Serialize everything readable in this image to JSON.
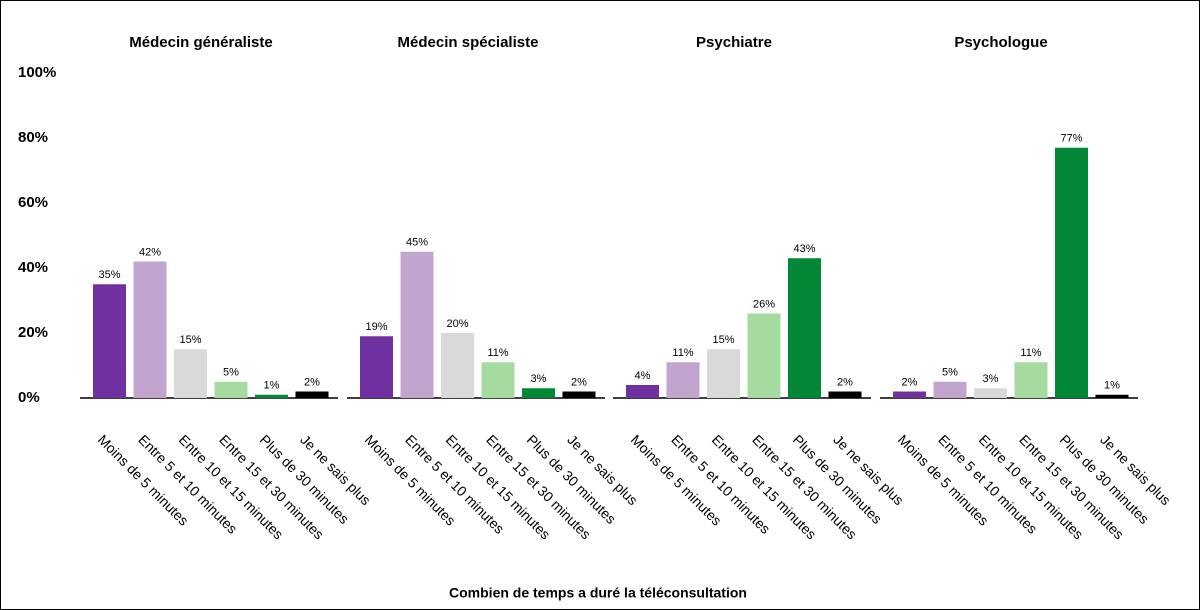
{
  "chart_data": [
    {
      "type": "bar",
      "title": "Médecin généraliste",
      "categories": [
        "Moins de 5 minutes",
        "Entre 5 et 10 minutes",
        "Entre 10 et 15 minutes",
        "Entre 15 et 30 minutes",
        "Plus de 30 minutes",
        "Je ne sais plus"
      ],
      "values": [
        35,
        42,
        15,
        5,
        1,
        2
      ],
      "value_labels": [
        "35%",
        "42%",
        "15%",
        "5%",
        "1%",
        "2%"
      ],
      "colors": [
        "#7030a0",
        "#c2a5cf",
        "#d9d9d9",
        "#a6dba0",
        "#008837",
        "#000000"
      ],
      "ylim": [
        0,
        100
      ],
      "yticks": [
        {
          "value": 0,
          "label": "0%"
        },
        {
          "value": 20,
          "label": "20%"
        },
        {
          "value": 40,
          "label": "40%"
        },
        {
          "value": 60,
          "label": "60%"
        },
        {
          "value": 80,
          "label": "80%"
        },
        {
          "value": 100,
          "label": "100%"
        }
      ],
      "xlabel": "Combien de temps a duré la téléconsultation"
    },
    {
      "type": "bar",
      "title": "Médecin spécialiste",
      "categories": [
        "Moins de 5 minutes",
        "Entre 5 et 10 minutes",
        "Entre 10 et 15 minutes",
        "Entre 15 et 30 minutes",
        "Plus de 30 minutes",
        "Je ne sais plus"
      ],
      "values": [
        19,
        45,
        20,
        11,
        3,
        2
      ],
      "value_labels": [
        "19%",
        "45%",
        "20%",
        "11%",
        "3%",
        "2%"
      ],
      "colors": [
        "#7030a0",
        "#c2a5cf",
        "#d9d9d9",
        "#a6dba0",
        "#008837",
        "#000000"
      ],
      "ylim": [
        0,
        100
      ]
    },
    {
      "type": "bar",
      "title": "Psychiatre",
      "categories": [
        "Moins de 5 minutes",
        "Entre 5 et 10 minutes",
        "Entre 10 et 15 minutes",
        "Entre 15 et 30 minutes",
        "Plus de 30 minutes",
        "Je ne sais plus"
      ],
      "values": [
        4,
        11,
        15,
        26,
        43,
        2
      ],
      "value_labels": [
        "4%",
        "11%",
        "15%",
        "26%",
        "43%",
        "2%"
      ],
      "colors": [
        "#7030a0",
        "#c2a5cf",
        "#d9d9d9",
        "#a6dba0",
        "#008837",
        "#000000"
      ],
      "ylim": [
        0,
        100
      ]
    },
    {
      "type": "bar",
      "title": "Psychologue",
      "categories": [
        "Moins de 5 minutes",
        "Entre 5 et 10 minutes",
        "Entre 10 et 15 minutes",
        "Entre 15 et 30 minutes",
        "Plus de 30 minutes",
        "Je ne sais plus"
      ],
      "values": [
        2,
        5,
        3,
        11,
        77,
        1
      ],
      "value_labels": [
        "2%",
        "5%",
        "3%",
        "11%",
        "77%",
        "1%"
      ],
      "colors": [
        "#7030a0",
        "#c2a5cf",
        "#d9d9d9",
        "#a6dba0",
        "#008837",
        "#000000"
      ],
      "ylim": [
        0,
        100
      ]
    }
  ]
}
